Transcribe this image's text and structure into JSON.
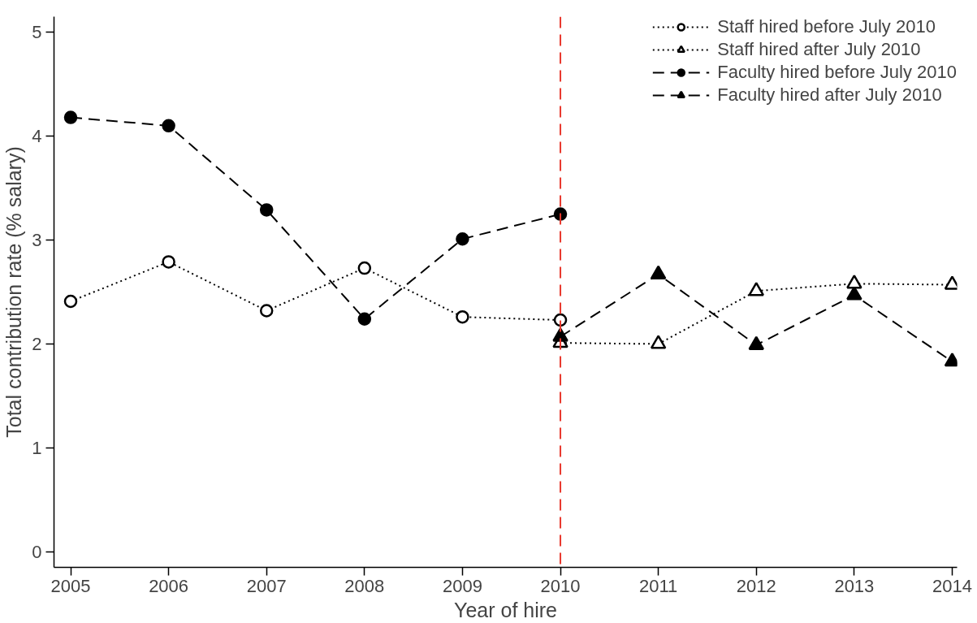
{
  "chart_data": {
    "type": "line",
    "xlabel": "Year of hire",
    "ylabel": "Total contribution rate (% salary)",
    "xlim": [
      2004.83,
      2014.05
    ],
    "ylim": [
      -0.15,
      5.15
    ],
    "xticks": [
      2005,
      2006,
      2007,
      2008,
      2009,
      2010,
      2011,
      2012,
      2013,
      2014
    ],
    "yticks": [
      0,
      1,
      2,
      3,
      4,
      5
    ],
    "grid": false,
    "legend": "top right",
    "ref_lines": [
      {
        "axis": "x",
        "value": 2010,
        "color": "#e8372c",
        "line_style": "dashed"
      }
    ],
    "series": [
      {
        "name": "Staff hired before July 2010",
        "color": "#000000",
        "marker": "circle",
        "line_style": "dotted",
        "x": [
          2005,
          2006,
          2007,
          2008,
          2009,
          2010
        ],
        "values": [
          2.41,
          2.79,
          2.32,
          2.73,
          2.26,
          2.23
        ]
      },
      {
        "name": "Staff hired after July 2010",
        "color": "#000000",
        "marker": "triangle",
        "line_style": "dotted",
        "x": [
          2010,
          2011,
          2012,
          2013,
          2014
        ],
        "values": [
          2.01,
          2.0,
          2.51,
          2.58,
          2.57
        ]
      },
      {
        "name": "Faculty hired before July 2010",
        "color": "#000000",
        "marker": "circle",
        "line_style": "dashed",
        "x": [
          2005,
          2006,
          2007,
          2008,
          2009,
          2010
        ],
        "values": [
          4.18,
          4.1,
          3.29,
          2.24,
          3.01,
          3.25
        ]
      },
      {
        "name": "Faculty hired after July 2010",
        "color": "#000000",
        "marker": "triangle",
        "line_style": "dashed",
        "x": [
          2010,
          2011,
          2012,
          2013,
          2014
        ],
        "values": [
          2.07,
          2.67,
          1.99,
          2.47,
          1.83
        ]
      }
    ]
  }
}
